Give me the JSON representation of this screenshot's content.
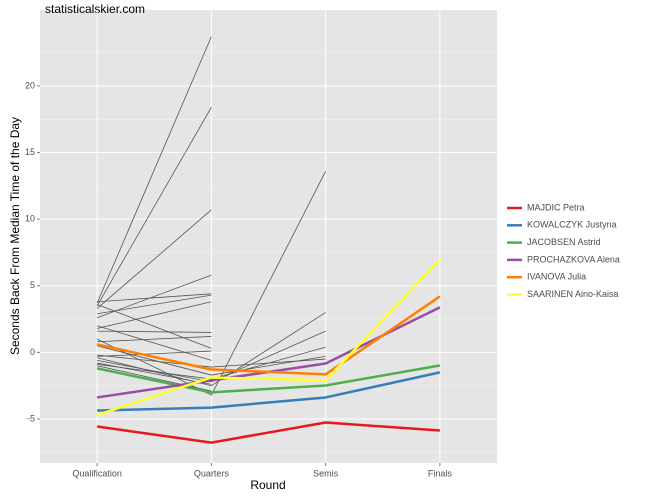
{
  "chart_data": {
    "type": "line",
    "title": "statisticalskier.com",
    "x_label": "Round",
    "y_label": "Seconds Back From Median Time of the Day",
    "categories": [
      "Qualification",
      "Quarters",
      "Semis",
      "Finals"
    ],
    "ylim": [
      -8.3,
      25.7
    ],
    "yticks": [
      -5,
      0,
      5,
      10,
      15,
      20
    ],
    "grid": true,
    "legend": "right",
    "series": [
      {
        "color": "#555555",
        "values": [
          3.7,
          23.7,
          null,
          null
        ]
      },
      {
        "color": "#555555",
        "values": [
          3.5,
          18.4,
          null,
          null
        ]
      },
      {
        "color": "#555555",
        "values": [
          3.3,
          10.7,
          null,
          null
        ]
      },
      {
        "color": "#555555",
        "values": [
          2.6,
          5.8,
          null,
          null
        ]
      },
      {
        "color": "#555555",
        "values": [
          3.8,
          4.4,
          null,
          null
        ]
      },
      {
        "color": "#555555",
        "values": [
          2.9,
          4.3,
          null,
          null
        ]
      },
      {
        "color": "#555555",
        "values": [
          1.8,
          3.8,
          null,
          null
        ]
      },
      {
        "color": "#555555",
        "values": [
          1.6,
          1.5,
          null,
          null
        ]
      },
      {
        "color": "#555555",
        "values": [
          0.8,
          1.2,
          null,
          null
        ]
      },
      {
        "color": "#555555",
        "values": [
          3.6,
          0.3,
          null,
          null
        ]
      },
      {
        "color": "#555555",
        "values": [
          -0.3,
          0.1,
          null,
          null
        ]
      },
      {
        "color": "#555555",
        "values": [
          2.0,
          -0.6,
          null,
          null
        ]
      },
      {
        "color": "#555555",
        "values": [
          1.0,
          -3.2,
          13.6,
          null
        ]
      },
      {
        "color": "#555555",
        "values": [
          -0.4,
          -2.5,
          3.0,
          null
        ]
      },
      {
        "color": "#555555",
        "values": [
          -0.6,
          -2.2,
          1.6,
          null
        ]
      },
      {
        "color": "#555555",
        "values": [
          -0.9,
          -2.0,
          0.4,
          null
        ]
      },
      {
        "color": "#555555",
        "values": [
          0.5,
          -1.7,
          -0.3,
          null
        ]
      },
      {
        "color": "#555555",
        "values": [
          -0.2,
          -1.1,
          -0.5,
          null
        ]
      },
      {
        "color": "#555555",
        "values": [
          -1.0,
          -2.9,
          null,
          null
        ]
      },
      {
        "color": "#555555",
        "values": [
          -0.8,
          -2.4,
          null,
          null
        ]
      },
      {
        "name": "MAJDIC Petra",
        "color": "#e41a1c",
        "values": [
          -5.56,
          -6.77,
          -5.26,
          -5.86
        ]
      },
      {
        "name": "KOWALCZYK Justyna",
        "color": "#377eb8",
        "values": [
          -4.36,
          -4.14,
          -3.38,
          -1.5
        ]
      },
      {
        "name": "JACOBSEN Astrid",
        "color": "#4daf4a",
        "values": [
          -1.2,
          -3.0,
          -2.48,
          -0.98
        ]
      },
      {
        "name": "PROCHAZKOVA Alena",
        "color": "#984ea3",
        "values": [
          -3.38,
          -2.1,
          -0.83,
          3.38
        ]
      },
      {
        "name": "IVANOVA Julia",
        "color": "#ff7f00",
        "values": [
          0.6,
          -1.28,
          -1.65,
          4.2
        ]
      },
      {
        "name": "SAARINEN Aino-Kaisa",
        "color": "#ffff33",
        "values": [
          -4.7,
          -1.88,
          -2.1,
          6.98
        ]
      }
    ]
  }
}
